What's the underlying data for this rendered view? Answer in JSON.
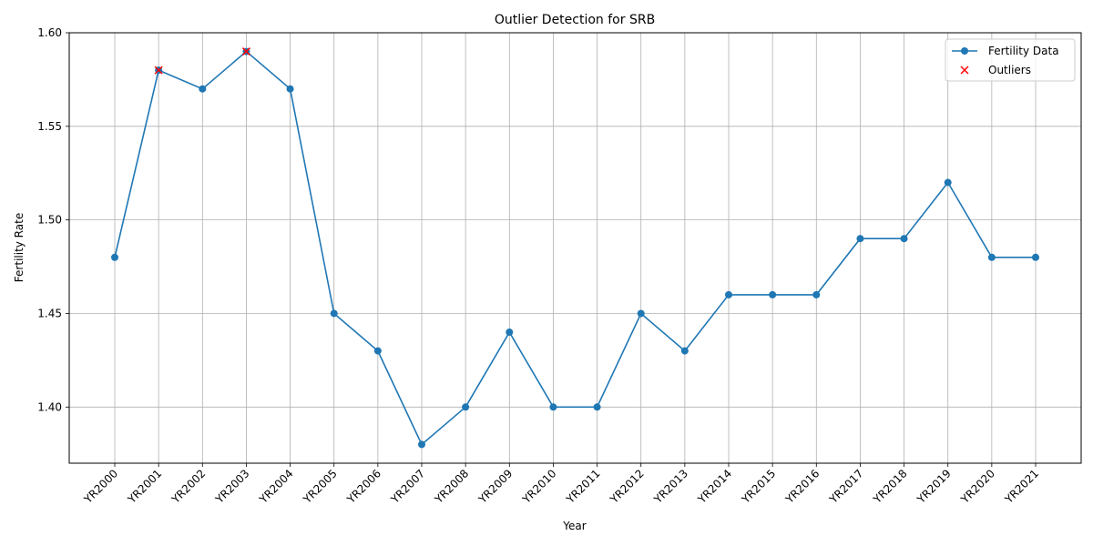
{
  "chart_data": {
    "type": "line",
    "title": "Outlier Detection for SRB",
    "xlabel": "Year",
    "ylabel": "Fertility Rate",
    "categories": [
      "YR2000",
      "YR2001",
      "YR2002",
      "YR2003",
      "YR2004",
      "YR2005",
      "YR2006",
      "YR2007",
      "YR2008",
      "YR2009",
      "YR2010",
      "YR2011",
      "YR2012",
      "YR2013",
      "YR2014",
      "YR2015",
      "YR2016",
      "YR2017",
      "YR2018",
      "YR2019",
      "YR2020",
      "YR2021"
    ],
    "series": [
      {
        "name": "Fertility Data",
        "color": "#1f77b4",
        "values": [
          1.48,
          1.58,
          1.57,
          1.59,
          1.57,
          1.45,
          1.43,
          1.38,
          1.4,
          1.44,
          1.4,
          1.4,
          1.45,
          1.43,
          1.46,
          1.46,
          1.46,
          1.49,
          1.49,
          1.52,
          1.48,
          1.48
        ]
      }
    ],
    "outliers": {
      "name": "Outliers",
      "color": "#ff0000",
      "marker": "x",
      "points": [
        {
          "x": "YR2001",
          "y": 1.58
        },
        {
          "x": "YR2003",
          "y": 1.59
        }
      ]
    },
    "ylim": [
      1.37,
      1.6
    ],
    "yticks": [
      1.4,
      1.45,
      1.5,
      1.55,
      1.6
    ],
    "ytick_labels": [
      "1.40",
      "1.45",
      "1.50",
      "1.55",
      "1.60"
    ],
    "grid": true,
    "legend_position": "top-right"
  }
}
